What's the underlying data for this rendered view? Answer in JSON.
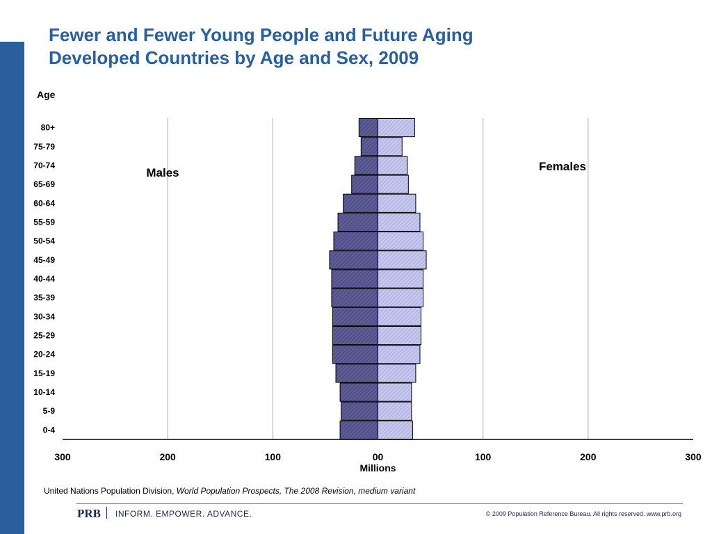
{
  "slide": {
    "title_line1": "Fewer and Fewer Young People and Future Aging",
    "title_line2": "Developed Countries by Age and Sex, 2009",
    "source_prefix": "United Nations Population Division, ",
    "source_italic": "World Population Prospects, The 2008 Revision, medium variant",
    "logo": "PRB",
    "tagline": "INFORM. EMPOWER. ADVANCE.",
    "copyright": "© 2009 Population Reference Bureau. All rights reserved. www.prb.org",
    "accent_color": "#2a5f9e"
  },
  "chart_data": {
    "type": "bar",
    "orientation": "horizontal",
    "title": "",
    "xlabel": "Millions",
    "ylabel": "Age",
    "xlim": [
      -300,
      300
    ],
    "x_ticks": [
      -300,
      -200,
      -100,
      0,
      100,
      200,
      300
    ],
    "x_tick_labels": [
      "300",
      "200",
      "100",
      "00",
      "100",
      "200",
      "300"
    ],
    "grid": true,
    "categories": [
      "80+",
      "75-79",
      "70-74",
      "65-69",
      "60-64",
      "55-59",
      "50-54",
      "45-49",
      "40-44",
      "35-39",
      "30-34",
      "25-29",
      "20-24",
      "15-19",
      "10-14",
      "5-9",
      "0-4"
    ],
    "series": [
      {
        "name": "Males",
        "side": "left",
        "color": "#5c5c94",
        "values": [
          18,
          16,
          22,
          25,
          33,
          38,
          42,
          46,
          44,
          44,
          43,
          43,
          43,
          40,
          36,
          35,
          36
        ]
      },
      {
        "name": "Females",
        "side": "right",
        "color": "#c4c6ee",
        "values": [
          35,
          23,
          28,
          29,
          36,
          40,
          43,
          46,
          43,
          43,
          41,
          41,
          40,
          36,
          32,
          32,
          33
        ]
      }
    ]
  }
}
